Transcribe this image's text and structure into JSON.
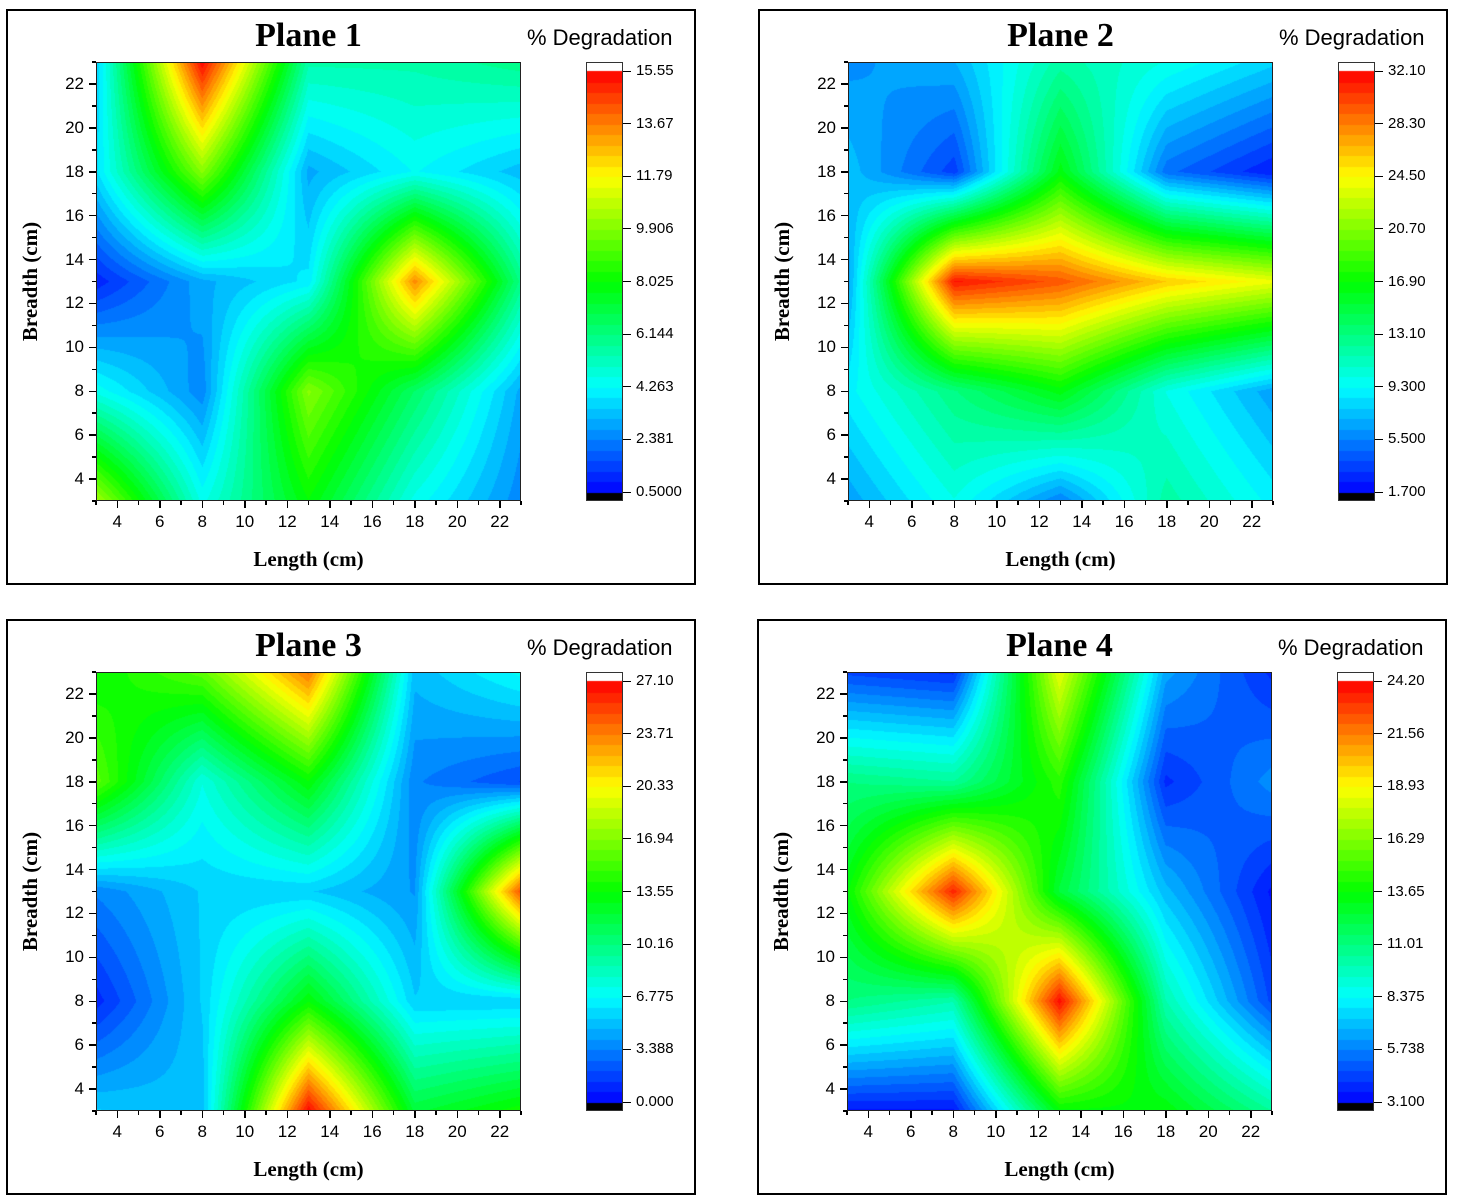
{
  "chart_data": [
    {
      "type": "heatmap",
      "title": "Plane 1",
      "colorbar_title": "% Degradation",
      "xlabel": "Length (cm)",
      "ylabel": "Breadth (cm)",
      "xlim": [
        3,
        23
      ],
      "ylim": [
        3,
        23
      ],
      "xticks": [
        "4",
        "6",
        "8",
        "10",
        "12",
        "14",
        "16",
        "18",
        "20",
        "22"
      ],
      "yticks": [
        "4",
        "6",
        "8",
        "10",
        "12",
        "14",
        "16",
        "18",
        "20",
        "22"
      ],
      "colorbar_range": [
        0.5,
        15.55
      ],
      "colorbar_ticks": [
        "15.55",
        "13.67",
        "11.79",
        "9.906",
        "8.025",
        "6.144",
        "4.263",
        "2.381",
        "0.5000"
      ],
      "x": [
        3,
        8,
        13,
        18,
        23
      ],
      "y": [
        3,
        8,
        13,
        18,
        23
      ],
      "z": [
        [
          10.5,
          4.5,
          8.0,
          4.5,
          2.5
        ],
        [
          4.5,
          2.5,
          10.0,
          6.5,
          3.0
        ],
        [
          1.0,
          3.0,
          4.0,
          13.5,
          6.0
        ],
        [
          3.8,
          10.0,
          3.0,
          4.3,
          3.3
        ],
        [
          3.5,
          15.5,
          5.5,
          5.5,
          6.0
        ]
      ]
    },
    {
      "type": "heatmap",
      "title": "Plane 2",
      "colorbar_title": "% Degradation",
      "xlabel": "Length (cm)",
      "ylabel": "Breadth (cm)",
      "xlim": [
        3,
        23
      ],
      "ylim": [
        3,
        23
      ],
      "xticks": [
        "4",
        "6",
        "8",
        "10",
        "12",
        "14",
        "16",
        "18",
        "20",
        "22"
      ],
      "yticks": [
        "4",
        "6",
        "8",
        "10",
        "12",
        "14",
        "16",
        "18",
        "20",
        "22"
      ],
      "colorbar_range": [
        1.7,
        32.1
      ],
      "colorbar_ticks": [
        "32.10",
        "28.30",
        "24.50",
        "20.70",
        "16.90",
        "13.10",
        "9.300",
        "5.500",
        "1.700"
      ],
      "x": [
        3,
        8,
        13,
        18,
        23
      ],
      "y": [
        3,
        8,
        13,
        18,
        23
      ],
      "z": [
        [
          6.5,
          10.0,
          5.5,
          12.0,
          9.0
        ],
        [
          9.0,
          13.0,
          16.5,
          10.0,
          6.5
        ],
        [
          6.5,
          31.5,
          29.5,
          26.0,
          24.0
        ],
        [
          7.5,
          3.5,
          16.5,
          5.0,
          2.5
        ],
        [
          6.0,
          7.0,
          12.0,
          10.0,
          8.0
        ]
      ]
    },
    {
      "type": "heatmap",
      "title": "Plane 3",
      "colorbar_title": "% Degradation",
      "xlabel": "Length (cm)",
      "ylabel": "Breadth (cm)",
      "xlim": [
        3,
        23
      ],
      "ylim": [
        3,
        23
      ],
      "xticks": [
        "4",
        "6",
        "8",
        "10",
        "12",
        "14",
        "16",
        "18",
        "20",
        "22"
      ],
      "yticks": [
        "4",
        "6",
        "8",
        "10",
        "12",
        "14",
        "16",
        "18",
        "20",
        "22"
      ],
      "colorbar_range": [
        0.0,
        27.1
      ],
      "colorbar_ticks": [
        "27.10",
        "23.71",
        "20.33",
        "16.94",
        "13.55",
        "10.16",
        "6.775",
        "3.388",
        "0.000"
      ],
      "x": [
        3,
        8,
        13,
        18,
        23
      ],
      "y": [
        3,
        8,
        13,
        18,
        23
      ],
      "z": [
        [
          5.5,
          5.0,
          27.0,
          12.0,
          14.0
        ],
        [
          1.0,
          5.5,
          13.5,
          5.5,
          5.5
        ],
        [
          3.5,
          5.5,
          5.5,
          4.0,
          25.0
        ],
        [
          16.0,
          7.5,
          13.5,
          3.5,
          2.0
        ],
        [
          13.5,
          16.0,
          24.0,
          5.0,
          7.0
        ]
      ]
    },
    {
      "type": "heatmap",
      "title": "Plane 4",
      "colorbar_title": "% Degradation",
      "xlabel": "Length (cm)",
      "ylabel": "Breadth (cm)",
      "xlim": [
        3,
        23
      ],
      "ylim": [
        3,
        23
      ],
      "xticks": [
        "4",
        "6",
        "8",
        "10",
        "12",
        "14",
        "16",
        "18",
        "20",
        "22"
      ],
      "yticks": [
        "4",
        "6",
        "8",
        "10",
        "12",
        "14",
        "16",
        "18",
        "20",
        "22"
      ],
      "colorbar_range": [
        3.1,
        24.2
      ],
      "colorbar_ticks": [
        "24.20",
        "21.56",
        "18.93",
        "16.29",
        "13.65",
        "11.01",
        "8.375",
        "5.738",
        "3.100"
      ],
      "x": [
        3,
        8,
        13,
        18,
        23
      ],
      "y": [
        3,
        8,
        13,
        18,
        23
      ],
      "z": [
        [
          3.5,
          3.5,
          13.5,
          13.5,
          10.5
        ],
        [
          11.0,
          10.0,
          24.0,
          10.0,
          4.5
        ],
        [
          13.5,
          23.5,
          12.5,
          7.0,
          3.5
        ],
        [
          11.0,
          10.5,
          14.5,
          4.0,
          6.0
        ],
        [
          4.5,
          4.0,
          18.5,
          6.5,
          4.0
        ]
      ]
    }
  ]
}
